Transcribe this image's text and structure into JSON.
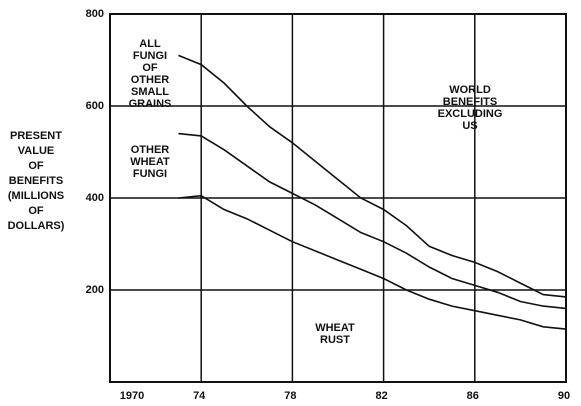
{
  "chart_data": {
    "type": "line",
    "y_label": [
      "PRESENT",
      "VALUE",
      "OF",
      "BENEFITS",
      "(MILLIONS",
      "OF",
      "DOLLARS)"
    ],
    "annotations": [
      {
        "lines": [
          "ALL",
          "FUNGI",
          "OF",
          "OTHER",
          "SMALL",
          "GRAINS"
        ]
      },
      {
        "lines": [
          "OTHER",
          "WHEAT",
          "FUNGI"
        ]
      },
      {
        "lines": [
          "WORLD",
          "BENEFITS",
          "EXCLUDING",
          "US"
        ]
      },
      {
        "lines": [
          "WHEAT",
          "RUST"
        ]
      }
    ],
    "x": [
      1973,
      1974,
      1975,
      1976,
      1977,
      1978,
      1979,
      1980,
      1981,
      1982,
      1983,
      1984,
      1985,
      1986,
      1987,
      1988,
      1989,
      1990
    ],
    "series": [
      {
        "color": "#111111",
        "values": [
          710,
          690,
          650,
          600,
          555,
          520,
          480,
          440,
          400,
          375,
          340,
          295,
          275,
          260,
          240,
          215,
          190,
          185
        ]
      },
      {
        "color": "#111111",
        "values": [
          540,
          535,
          505,
          470,
          435,
          410,
          385,
          355,
          325,
          305,
          280,
          250,
          225,
          210,
          195,
          175,
          165,
          160
        ]
      },
      {
        "color": "#111111",
        "values": [
          400,
          405,
          375,
          355,
          330,
          305,
          285,
          265,
          245,
          225,
          200,
          180,
          165,
          155,
          145,
          135,
          120,
          115
        ]
      }
    ],
    "xlim": [
      1970,
      1990
    ],
    "xticks": [
      1970,
      {
        "value": 1974,
        "label": "74"
      },
      {
        "value": 1978,
        "label": "78"
      },
      {
        "value": 1982,
        "label": "82"
      },
      {
        "value": 1986,
        "label": "86"
      },
      {
        "value": 1990,
        "label": "90"
      }
    ],
    "ylim": [
      0,
      800
    ],
    "yticks": [
      200,
      400,
      600,
      800
    ],
    "grid": true
  }
}
